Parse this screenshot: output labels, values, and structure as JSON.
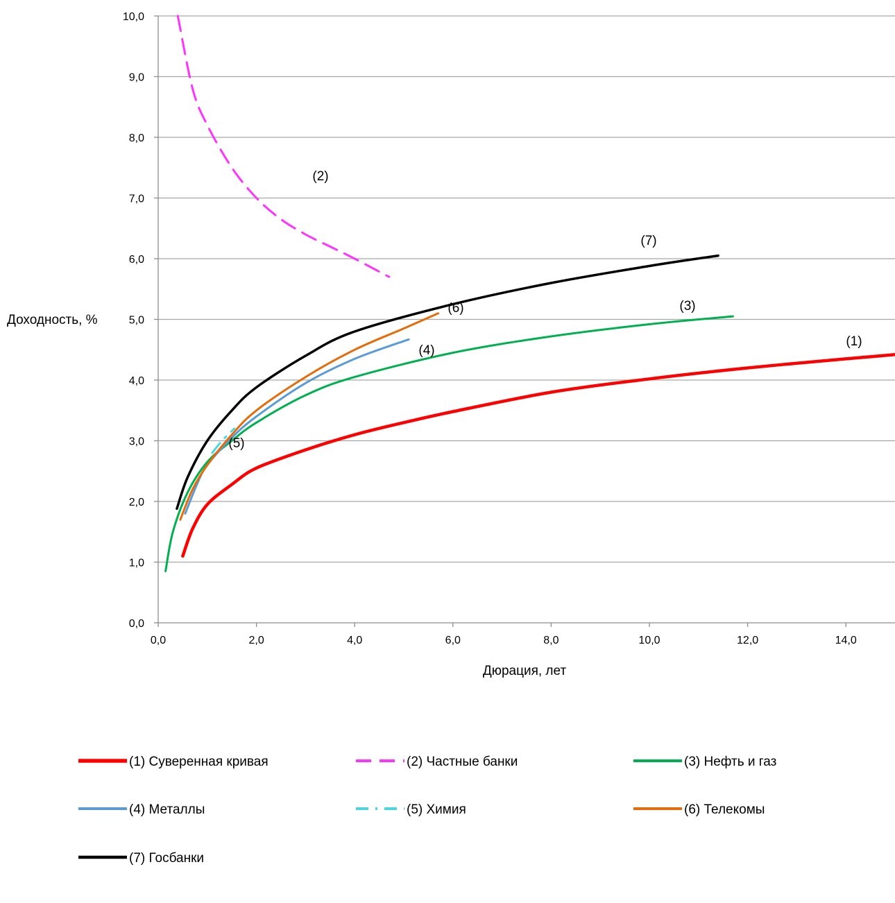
{
  "chart_data": {
    "type": "line",
    "xlabel": "Дюрация, лет",
    "ylabel": "Доходность, %",
    "xlim": [
      0,
      15
    ],
    "ylim": [
      0,
      10
    ],
    "x_ticks": [
      "0,0",
      "2,0",
      "4,0",
      "6,0",
      "8,0",
      "10,0",
      "12,0",
      "14,0"
    ],
    "y_ticks": [
      "0,0",
      "1,0",
      "2,0",
      "3,0",
      "4,0",
      "5,0",
      "6,0",
      "7,0",
      "8,0",
      "9,0",
      "10,0"
    ],
    "grid": "horizontal",
    "legend_position": "bottom",
    "series": [
      {
        "name": "(1) Суверенная кривая",
        "annotation": "(1)",
        "color": "#ff0000",
        "style": "solid",
        "x": [
          0.5,
          0.7,
          1.0,
          1.5,
          2.0,
          3.0,
          4.0,
          5.0,
          6.0,
          8.0,
          10.0,
          12.0,
          14.0,
          15.0
        ],
        "y": [
          1.1,
          1.55,
          1.95,
          2.28,
          2.55,
          2.85,
          3.1,
          3.3,
          3.48,
          3.8,
          4.02,
          4.2,
          4.35,
          4.42
        ]
      },
      {
        "name": "(2) Частные банки",
        "annotation": "(2)",
        "color": "#ff33ff",
        "style": "dashed",
        "x": [
          0.4,
          0.7,
          1.0,
          1.5,
          2.0,
          2.5,
          3.0,
          3.5,
          4.0,
          4.7
        ],
        "y": [
          10.0,
          8.8,
          8.2,
          7.5,
          7.0,
          6.65,
          6.4,
          6.2,
          6.0,
          5.7
        ]
      },
      {
        "name": "(3) Нефть и газ",
        "annotation": "(3)",
        "color": "#00b050",
        "style": "solid",
        "x": [
          0.15,
          0.3,
          0.6,
          1.0,
          1.5,
          2.0,
          3.0,
          4.0,
          6.0,
          8.0,
          10.0,
          11.7
        ],
        "y": [
          0.85,
          1.5,
          2.15,
          2.65,
          3.0,
          3.3,
          3.75,
          4.05,
          4.45,
          4.72,
          4.92,
          5.05
        ]
      },
      {
        "name": "(4) Металлы",
        "annotation": "(4)",
        "color": "#5b9bd5",
        "style": "solid",
        "x": [
          0.55,
          0.8,
          1.0,
          1.5,
          2.0,
          3.0,
          4.0,
          5.1
        ],
        "y": [
          1.8,
          2.3,
          2.6,
          3.05,
          3.4,
          3.95,
          4.35,
          4.67
        ]
      },
      {
        "name": "(5) Химия",
        "annotation": "(5)",
        "color": "#4bd6e0",
        "style": "dashdot",
        "x": [
          1.1,
          1.3,
          1.55
        ],
        "y": [
          2.8,
          3.0,
          3.2
        ]
      },
      {
        "name": "(6) Телекомы",
        "annotation": "(6)",
        "color": "#e46c0a",
        "style": "solid",
        "x": [
          0.45,
          0.7,
          1.0,
          1.5,
          2.0,
          3.0,
          4.0,
          5.0,
          5.7
        ],
        "y": [
          1.7,
          2.2,
          2.6,
          3.1,
          3.5,
          4.05,
          4.5,
          4.85,
          5.1
        ]
      },
      {
        "name": "(7) Госбанки",
        "annotation": "(7)",
        "color": "#000000",
        "style": "solid",
        "x": [
          0.38,
          0.6,
          1.0,
          1.5,
          2.0,
          3.0,
          4.0,
          6.0,
          8.0,
          10.0,
          11.4
        ],
        "y": [
          1.88,
          2.4,
          3.0,
          3.5,
          3.88,
          4.4,
          4.8,
          5.25,
          5.6,
          5.88,
          6.05
        ]
      }
    ]
  }
}
